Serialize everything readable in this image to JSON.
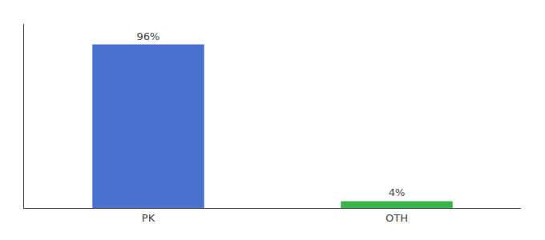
{
  "chart_data": {
    "type": "bar",
    "categories": [
      "PK",
      "OTH"
    ],
    "values": [
      96,
      4
    ],
    "value_labels": [
      "96%",
      "4%"
    ],
    "data_labels": true,
    "colors": [
      "#4a72d1",
      "#3ab54a"
    ],
    "ylim": [
      0,
      108
    ],
    "tick_labels": "x",
    "grid": false
  }
}
